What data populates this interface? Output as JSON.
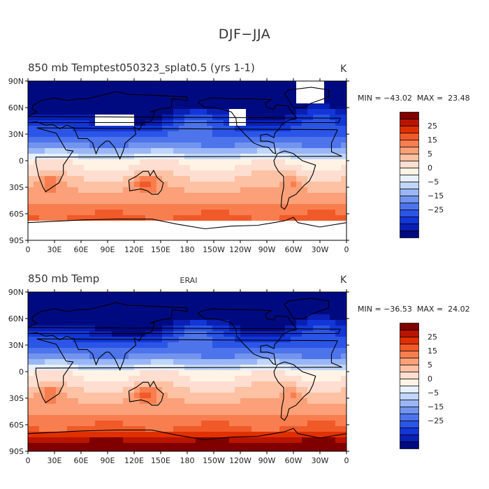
{
  "figure_title": "DJF−JJA",
  "panels": [
    {
      "title": "850 mb Temptest050323_splat0.5 (yrs 1-1)",
      "center_label": "",
      "units": "K",
      "min_label": "MIN = −43.02",
      "max_label": "MAX =  23.48"
    },
    {
      "title": "850 mb Temp",
      "center_label": "ERAI",
      "units": "K",
      "min_label": "MIN = −36.53",
      "max_label": "MAX =  24.02"
    }
  ],
  "lat_ticks": [
    "90N",
    "60N",
    "30N",
    "0",
    "30S",
    "60S",
    "90S"
  ],
  "lon_ticks": [
    "0",
    "30E",
    "60E",
    "90E",
    "120E",
    "150E",
    "180",
    "150W",
    "120W",
    "90W",
    "60W",
    "30W",
    "0"
  ],
  "colorbar": {
    "labels": [
      "25",
      "15",
      "5",
      "0",
      "−5",
      "−15",
      "−25"
    ],
    "colors": [
      "#800000",
      "#b81400",
      "#e03000",
      "#f05a28",
      "#f87e50",
      "#fba078",
      "#fdc1a3",
      "#feded0",
      "#fff3e6",
      "#e6f0ff",
      "#c0d6fa",
      "#9ab6f5",
      "#7294ef",
      "#4d74ea",
      "#2b55e6",
      "#1236d7",
      "#0a1fb3",
      "#000a80"
    ]
  },
  "chart_data": {
    "type": "heatmap",
    "description_units": "K",
    "x_range": [
      0,
      360
    ],
    "y_range": [
      -90,
      90
    ],
    "levels": [
      -30,
      -25,
      -20,
      -15,
      -10,
      -5,
      0,
      5,
      10,
      15,
      20,
      25,
      30
    ]
  }
}
